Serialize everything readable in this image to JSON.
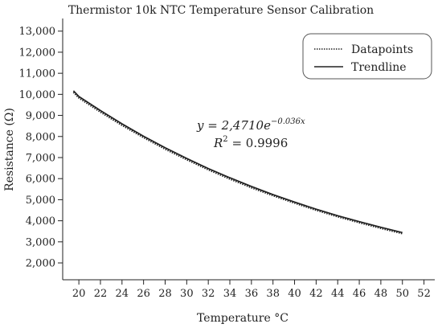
{
  "chart_data": {
    "type": "line",
    "title": "Thermistor 10k NTC Temperature Sensor Calibration",
    "xlabel": "Temperature °C",
    "ylabel": "Resistance (Ω)",
    "xlim": [
      18.5,
      53
    ],
    "ylim": [
      1200,
      13600
    ],
    "x_ticks": [
      20,
      22,
      24,
      26,
      28,
      30,
      32,
      34,
      36,
      38,
      40,
      42,
      44,
      46,
      48,
      50,
      52
    ],
    "x_tick_labels": [
      "20",
      "22",
      "24",
      "26",
      "28",
      "30",
      "32",
      "34",
      "36",
      "38",
      "40",
      "42",
      "44",
      "46",
      "48",
      "50",
      "52"
    ],
    "y_ticks": [
      2000,
      3000,
      4000,
      5000,
      6000,
      7000,
      8000,
      9000,
      10000,
      11000,
      12000,
      13000
    ],
    "y_tick_labels": [
      "2,000",
      "3,000",
      "4,000",
      "5,000",
      "6,000",
      "7,000",
      "8,000",
      "9,000",
      "10,000",
      "11,000",
      "12,000",
      "13,000"
    ],
    "grid": false,
    "legend_position": "top-right",
    "series": [
      {
        "name": "Datapoints",
        "style": "dotted",
        "x": [
          19.5,
          20,
          22,
          24,
          26,
          28,
          30,
          32,
          34,
          36,
          38,
          40,
          42,
          44,
          46,
          48,
          50
        ],
        "y": [
          10100,
          9830,
          9160,
          8530,
          7950,
          7400,
          6900,
          6420,
          5980,
          5570,
          5190,
          4840,
          4500,
          4190,
          3910,
          3640,
          3390
        ]
      },
      {
        "name": "Trendline",
        "style": "solid",
        "x": [
          19.5,
          20,
          22,
          24,
          26,
          28,
          30,
          32,
          34,
          36,
          38,
          40,
          42,
          44,
          46,
          48,
          50
        ],
        "y": [
          10170,
          9900,
          9230,
          8600,
          8010,
          7470,
          6960,
          6480,
          6040,
          5630,
          5240,
          4890,
          4550,
          4240,
          3960,
          3690,
          3440
        ]
      }
    ],
    "annotations": {
      "equation_prefix": "y = 2,4710e",
      "equation_exponent": "−0.036x",
      "r2_prefix": "R",
      "r2_superscript": "2",
      "r2_suffix": " = 0.9996"
    }
  }
}
